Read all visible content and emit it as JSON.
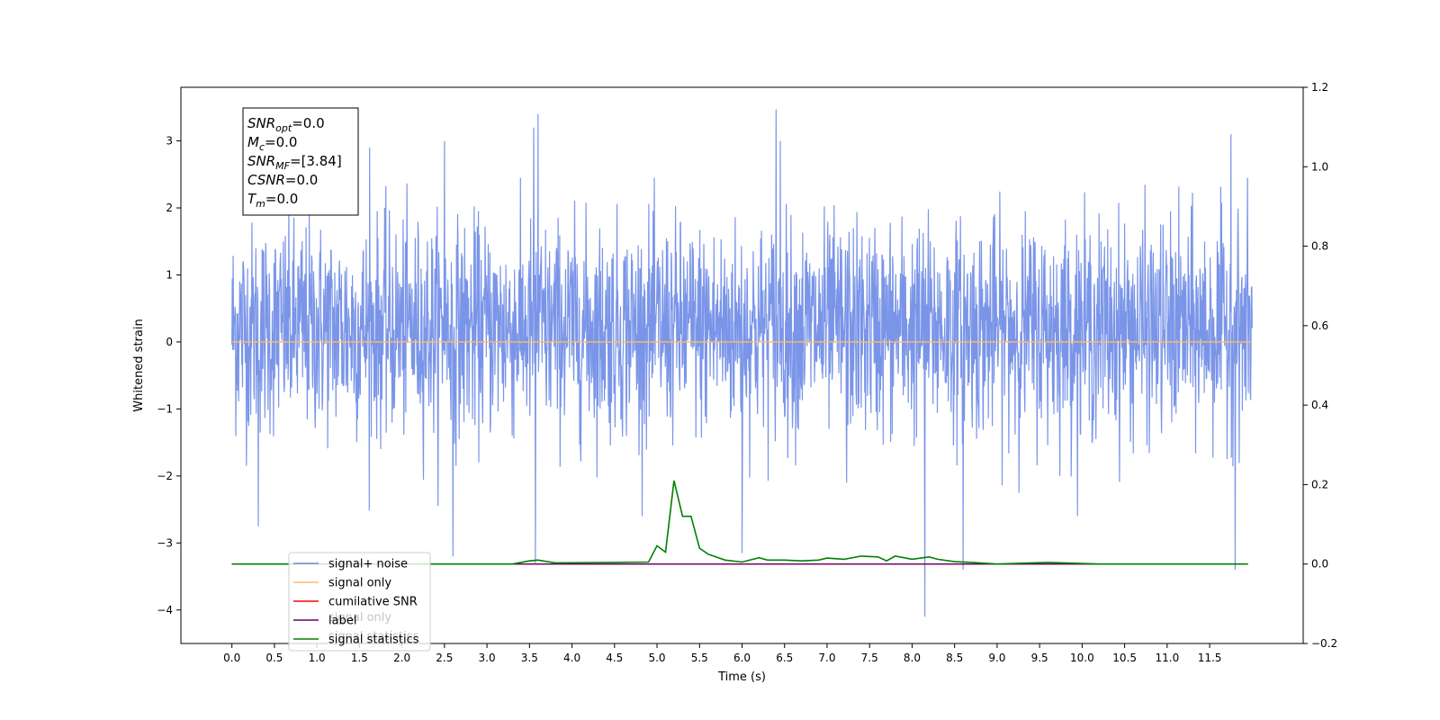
{
  "chart_data": {
    "type": "line",
    "title": "",
    "xlabel": "Time (s)",
    "ylabel_left": "Whitened strain",
    "ylabel_right": "",
    "xlim": [
      -0.6,
      12.6
    ],
    "ylim_left": [
      -4.5,
      3.8
    ],
    "ylim_right": [
      -0.2,
      1.2
    ],
    "grid": false,
    "x_ticks": [
      0.0,
      0.5,
      1.0,
      1.5,
      2.0,
      2.5,
      3.0,
      3.5,
      4.0,
      4.5,
      5.0,
      5.5,
      6.0,
      6.5,
      7.0,
      7.5,
      8.0,
      8.5,
      9.0,
      9.5,
      10.0,
      10.5,
      11.0,
      11.5
    ],
    "x_tick_labels": [
      "0.0",
      "0.5",
      "1.0",
      "1.5",
      "2.0",
      "2.5",
      "3.0",
      "3.5",
      "4.0",
      "4.5",
      "5.0",
      "5.5",
      "6.0",
      "6.5",
      "7.0",
      "7.5",
      "8.0",
      "8.5",
      "9.0",
      "9.5",
      "10.0",
      "10.5",
      "11.0",
      "11.5"
    ],
    "y_left_ticks": [
      -4,
      -3,
      -2,
      -1,
      0,
      1,
      2,
      3
    ],
    "y_left_tick_labels": [
      "−4",
      "−3",
      "−2",
      "−1",
      "0",
      "1",
      "2",
      "3"
    ],
    "y_right_ticks": [
      -0.2,
      0.0,
      0.2,
      0.4,
      0.6,
      0.8,
      1.0,
      1.2
    ],
    "y_right_tick_labels": [
      "−0.2",
      "0.0",
      "0.2",
      "0.4",
      "0.6",
      "0.8",
      "1.0",
      "1.2"
    ],
    "noise": {
      "x_range": [
        0.0,
        12.0
      ],
      "approx_range_typical": [
        -1.5,
        2.3
      ],
      "extremes": [
        {
          "x": 0.31,
          "y": -2.75
        },
        {
          "x": 1.62,
          "y": 2.9
        },
        {
          "x": 2.6,
          "y": -3.2
        },
        {
          "x": 3.55,
          "y": 3.2
        },
        {
          "x": 3.6,
          "y": 3.4
        },
        {
          "x": 3.57,
          "y": -3.3
        },
        {
          "x": 6.0,
          "y": -3.15
        },
        {
          "x": 6.4,
          "y": 3.47
        },
        {
          "x": 6.45,
          "y": 3.0
        },
        {
          "x": 7.23,
          "y": -2.1
        },
        {
          "x": 8.15,
          "y": -4.1
        },
        {
          "x": 8.6,
          "y": -3.4
        },
        {
          "x": 11.8,
          "y": -3.4
        },
        {
          "x": 11.75,
          "y": 3.1
        },
        {
          "x": 2.5,
          "y": 3.0
        }
      ]
    },
    "series": [
      {
        "name": "signal+ noise",
        "color": "#6b8ae6",
        "axis": "left",
        "x_range": [
          0.0,
          12.0
        ],
        "values_summary": "dense noise"
      },
      {
        "name": "signal only",
        "color": "#ffbb66",
        "axis": "left",
        "x": [
          0.0,
          12.0
        ],
        "values": [
          0.0,
          0.0
        ]
      },
      {
        "name": "cumilative SNR",
        "color": "#ff0000",
        "axis": "right",
        "x": [
          0.0,
          11.95
        ],
        "values": [
          0.0,
          0.0
        ]
      },
      {
        "name": "label",
        "color": "#6a006a",
        "axis": "right",
        "x": [
          0.0,
          11.95
        ],
        "values": [
          0.0,
          0.0
        ]
      },
      {
        "name": "signal statistics",
        "color": "#008000",
        "axis": "right",
        "x": [
          0.0,
          3.3,
          3.5,
          3.6,
          3.8,
          4.5,
          4.9,
          5.0,
          5.1,
          5.2,
          5.3,
          5.4,
          5.5,
          5.6,
          5.8,
          6.0,
          6.2,
          6.3,
          6.5,
          6.7,
          6.9,
          7.0,
          7.2,
          7.4,
          7.6,
          7.7,
          7.8,
          8.0,
          8.2,
          8.3,
          8.5,
          8.7,
          9.0,
          9.6,
          10.2,
          11.95
        ],
        "values": [
          0.0,
          0.0,
          0.008,
          0.01,
          0.003,
          0.004,
          0.005,
          0.046,
          0.03,
          0.21,
          0.12,
          0.12,
          0.04,
          0.025,
          0.01,
          0.005,
          0.016,
          0.01,
          0.01,
          0.008,
          0.01,
          0.015,
          0.012,
          0.02,
          0.018,
          0.008,
          0.02,
          0.012,
          0.018,
          0.012,
          0.006,
          0.004,
          0.0,
          0.004,
          0.0,
          0.0
        ]
      }
    ],
    "legend": {
      "position": "lower-left",
      "entries": [
        {
          "name": "signal+ noise",
          "color": "#6b8ae6"
        },
        {
          "name": "signal only",
          "color": "#ffbb66"
        },
        {
          "name": "cumilative SNR",
          "color": "#ff0000"
        },
        {
          "name": "label",
          "color": "#6a006a"
        },
        {
          "name": "signal statistics",
          "color": "#008000"
        }
      ],
      "ghost_texts": [
        "signal only",
        "signal statistics"
      ]
    },
    "annotation": {
      "position": "top-left",
      "lines": [
        {
          "var": "SNR",
          "sub": "opt",
          "rest": "=0.0"
        },
        {
          "var": "M",
          "sub": "c",
          "rest": "=0.0"
        },
        {
          "var": "SNR",
          "sub": "MF",
          "rest": "=[3.84]"
        },
        {
          "var": "CSNR",
          "sub": "",
          "rest": "=0.0"
        },
        {
          "var": "T",
          "sub": "m",
          "rest": "=0.0"
        }
      ]
    }
  }
}
